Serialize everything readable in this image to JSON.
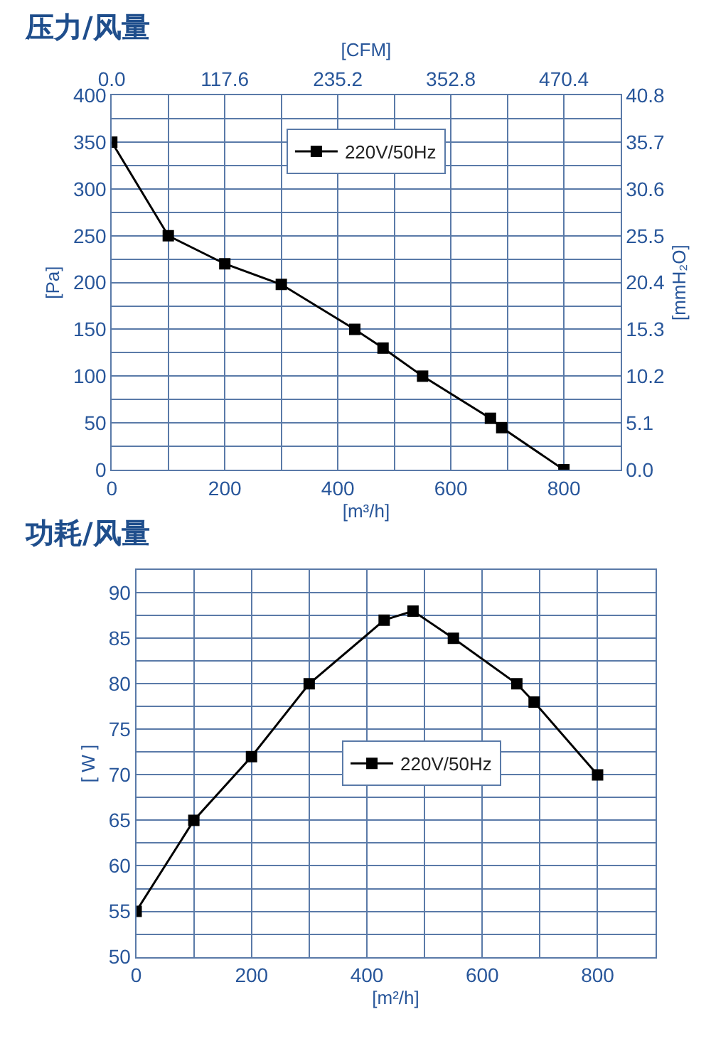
{
  "chart_data": [
    {
      "type": "line",
      "title": "压力/风量",
      "xlabel": "[m³/h]",
      "ylabel": "[Pa]",
      "y2label": "[mmH₂O]",
      "x2label": "[CFM]",
      "x": [
        0,
        100,
        200,
        300,
        430,
        480,
        550,
        670,
        690,
        800
      ],
      "series": [
        {
          "name": "220V/50Hz",
          "color": "#000000",
          "values": [
            350,
            250,
            220,
            198,
            150,
            130,
            100,
            55,
            45,
            0
          ]
        }
      ],
      "xlim": [
        0,
        900
      ],
      "xticks": [
        0,
        {
          "value": 100,
          "label": null
        },
        200,
        {
          "value": 300,
          "label": null
        },
        400,
        {
          "value": 500,
          "label": null
        },
        600,
        {
          "value": 700,
          "label": null
        },
        800,
        {
          "value": 900,
          "label": null
        }
      ],
      "ylim": [
        0,
        400
      ],
      "yticks": [
        0,
        {
          "value": 25,
          "label": null
        },
        50,
        {
          "value": 75,
          "label": null
        },
        100,
        {
          "value": 125,
          "label": null
        },
        150,
        {
          "value": 175,
          "label": null
        },
        200,
        {
          "value": 225,
          "label": null
        },
        250,
        {
          "value": 275,
          "label": null
        },
        300,
        {
          "value": 325,
          "label": null
        },
        350,
        {
          "value": 375,
          "label": null
        },
        400
      ],
      "x2lim": [
        0,
        529.2
      ],
      "x2ticks": [
        {
          "value": 0,
          "label": "0.0"
        },
        117.6,
        235.2,
        352.8,
        470.4
      ],
      "y2lim": [
        0,
        40.8
      ],
      "y2ticks": [
        {
          "value": 0,
          "label": "0.0"
        },
        5.1,
        10.2,
        15.3,
        20.4,
        25.5,
        30.6,
        35.7,
        40.8
      ],
      "grid": true,
      "legend": "top",
      "marker": "square"
    },
    {
      "type": "line",
      "title": "功耗/风量",
      "xlabel": "[m²/h]",
      "ylabel": "[ W ]",
      "x": [
        0,
        100,
        200,
        300,
        430,
        480,
        550,
        660,
        690,
        800
      ],
      "series": [
        {
          "name": "220V/50Hz",
          "color": "#000000",
          "values": [
            55,
            65,
            72,
            80,
            87,
            88,
            85,
            80,
            78,
            70
          ]
        }
      ],
      "xlim": [
        0,
        900
      ],
      "xticks": [
        0,
        {
          "value": 100,
          "label": null
        },
        200,
        {
          "value": 300,
          "label": null
        },
        400,
        {
          "value": 500,
          "label": null
        },
        600,
        {
          "value": 700,
          "label": null
        },
        800,
        {
          "value": 900,
          "label": null
        }
      ],
      "ylim": [
        50,
        92.5
      ],
      "yticks": [
        50,
        {
          "value": 52.5,
          "label": null
        },
        55,
        {
          "value": 57.5,
          "label": null
        },
        60,
        {
          "value": 62.5,
          "label": null
        },
        65,
        {
          "value": 67.5,
          "label": null
        },
        70,
        {
          "value": 72.5,
          "label": null
        },
        75,
        {
          "value": 77.5,
          "label": null
        },
        80,
        {
          "value": 82.5,
          "label": null
        },
        85,
        {
          "value": 87.5,
          "label": null
        },
        90,
        {
          "value": 92.5,
          "label": null
        }
      ],
      "grid": true,
      "legend": "center",
      "marker": "square"
    }
  ]
}
